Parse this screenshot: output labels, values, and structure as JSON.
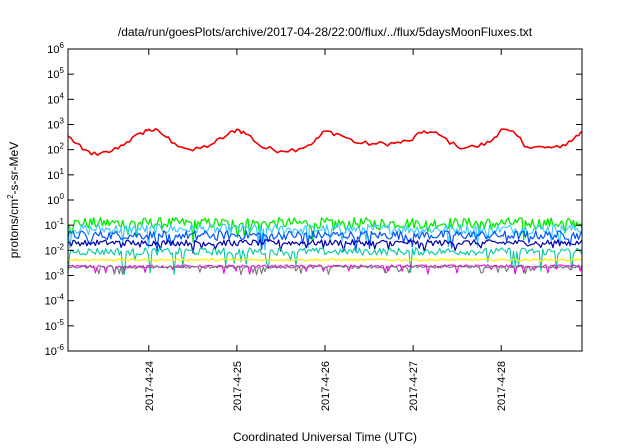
{
  "chart_data": {
    "type": "line",
    "title": "/data/run/goesPlots/archive/2017-04-28/22:00/flux/../flux/5daysMoonFluxes.txt",
    "xlabel": "Coordinated Universal Time (UTC)",
    "ylabel": {
      "base": "protons/cm",
      "sup": "2",
      "rest": "-s-sr-MeV"
    },
    "yscale": "log",
    "ylim": [
      1e-06,
      1000000.0
    ],
    "yticks": [
      {
        "base": "10",
        "exp": "6",
        "value": 1000000.0
      },
      {
        "base": "10",
        "exp": "5",
        "value": 100000.0
      },
      {
        "base": "10",
        "exp": "4",
        "value": 10000.0
      },
      {
        "base": "10",
        "exp": "3",
        "value": 1000.0
      },
      {
        "base": "10",
        "exp": "2",
        "value": 100.0
      },
      {
        "base": "10",
        "exp": "1",
        "value": 10.0
      },
      {
        "base": "10",
        "exp": "0",
        "value": 1.0
      },
      {
        "base": "10",
        "exp": "-1",
        "value": 0.1
      },
      {
        "base": "10",
        "exp": "-2",
        "value": 0.01
      },
      {
        "base": "10",
        "exp": "-3",
        "value": 0.001
      },
      {
        "base": "10",
        "exp": "-4",
        "value": 0.0001
      },
      {
        "base": "10",
        "exp": "-5",
        "value": 1e-05
      },
      {
        "base": "10",
        "exp": "-6",
        "value": 1e-06
      }
    ],
    "xlim": [
      "2017-04-23 02:00",
      "2017-04-28 22:00"
    ],
    "xticks": [
      {
        "label": "2017-4-24",
        "value": "2017-04-24 00:00"
      },
      {
        "label": "2017-4-25",
        "value": "2017-04-25 00:00"
      },
      {
        "label": "2017-4-26",
        "value": "2017-04-26 00:00"
      },
      {
        "label": "2017-4-27",
        "value": "2017-04-27 00:00"
      },
      {
        "label": "2017-4-28",
        "value": "2017-04-28 00:00"
      }
    ],
    "grid": false,
    "legend": "none",
    "series": [
      {
        "color": "#ee0000",
        "width": 1.6,
        "samples": 1,
        "jitter": 0.1,
        "dip_depth": 0,
        "points": [
          [
            "2017-04-23 02:00",
            350
          ],
          [
            "2017-04-23 06:00",
            100
          ],
          [
            "2017-04-23 10:00",
            60
          ],
          [
            "2017-04-23 14:00",
            90
          ],
          [
            "2017-04-23 18:00",
            200
          ],
          [
            "2017-04-23 22:00",
            450
          ],
          [
            "2017-04-24 00:00",
            650
          ],
          [
            "2017-04-24 03:00",
            500
          ],
          [
            "2017-04-24 07:00",
            180
          ],
          [
            "2017-04-24 12:00",
            90
          ],
          [
            "2017-04-24 17:00",
            160
          ],
          [
            "2017-04-24 21:00",
            350
          ],
          [
            "2017-04-25 00:00",
            650
          ],
          [
            "2017-04-25 03:00",
            400
          ],
          [
            "2017-04-25 07:00",
            120
          ],
          [
            "2017-04-25 12:00",
            90
          ],
          [
            "2017-04-25 17:00",
            110
          ],
          [
            "2017-04-25 21:00",
            200
          ],
          [
            "2017-04-26 00:00",
            550
          ],
          [
            "2017-04-26 04:00",
            400
          ],
          [
            "2017-04-26 09:00",
            180
          ],
          [
            "2017-04-26 14:00",
            170
          ],
          [
            "2017-04-26 19:00",
            180
          ],
          [
            "2017-04-26 23:00",
            220
          ],
          [
            "2017-04-27 03:00",
            550
          ],
          [
            "2017-04-27 07:00",
            400
          ],
          [
            "2017-04-27 12:00",
            130
          ],
          [
            "2017-04-27 17:00",
            130
          ],
          [
            "2017-04-27 21:00",
            200
          ],
          [
            "2017-04-28 00:00",
            650
          ],
          [
            "2017-04-28 04:00",
            400
          ],
          [
            "2017-04-28 07:00",
            130
          ],
          [
            "2017-04-28 12:00",
            120
          ],
          [
            "2017-04-28 16:00",
            120
          ],
          [
            "2017-04-28 20:00",
            300
          ],
          [
            "2017-04-28 22:00",
            500
          ]
        ]
      },
      {
        "color": "#00ee00",
        "width": 1.3,
        "samples": 300,
        "jitter": 0.22,
        "dip_depth": 0.6,
        "points": [
          [
            "2017-04-23 02:00",
            0.12
          ],
          [
            "2017-04-28 22:00",
            0.12
          ]
        ]
      },
      {
        "color": "#40c8ff",
        "width": 1.2,
        "samples": 300,
        "jitter": 0.2,
        "dip_depth": 0.7,
        "points": [
          [
            "2017-04-23 02:00",
            0.07
          ],
          [
            "2017-04-28 22:00",
            0.07
          ]
        ]
      },
      {
        "color": "#0055ff",
        "width": 1.2,
        "samples": 300,
        "jitter": 0.18,
        "dip_depth": 0.5,
        "points": [
          [
            "2017-04-23 02:00",
            0.04
          ],
          [
            "2017-04-28 22:00",
            0.04
          ]
        ]
      },
      {
        "color": "#0000aa",
        "width": 1.2,
        "samples": 300,
        "jitter": 0.12,
        "dip_depth": 0.3,
        "points": [
          [
            "2017-04-23 02:00",
            0.02
          ],
          [
            "2017-04-28 22:00",
            0.02
          ]
        ]
      },
      {
        "color": "#00c8a0",
        "width": 1.1,
        "samples": 300,
        "jitter": 0.15,
        "dip_depth": 0.9,
        "points": [
          [
            "2017-04-23 02:00",
            0.009
          ],
          [
            "2017-04-28 22:00",
            0.009
          ]
        ]
      },
      {
        "color": "#ffee00",
        "width": 1.3,
        "samples": 300,
        "jitter": 0.04,
        "dip_depth": 0,
        "points": [
          [
            "2017-04-23 02:00",
            0.0042
          ],
          [
            "2017-04-28 22:00",
            0.0042
          ]
        ]
      },
      {
        "color": "#ee00ee",
        "width": 1.1,
        "samples": 300,
        "jitter": 0.05,
        "dip_depth": 0.3,
        "points": [
          [
            "2017-04-23 02:00",
            0.0023
          ],
          [
            "2017-04-28 22:00",
            0.0024
          ]
        ]
      },
      {
        "color": "#777777",
        "width": 1.1,
        "samples": 300,
        "jitter": 0.05,
        "dip_depth": 0.3,
        "points": [
          [
            "2017-04-23 02:00",
            0.0021
          ],
          [
            "2017-04-28 22:00",
            0.0022
          ]
        ]
      }
    ]
  }
}
